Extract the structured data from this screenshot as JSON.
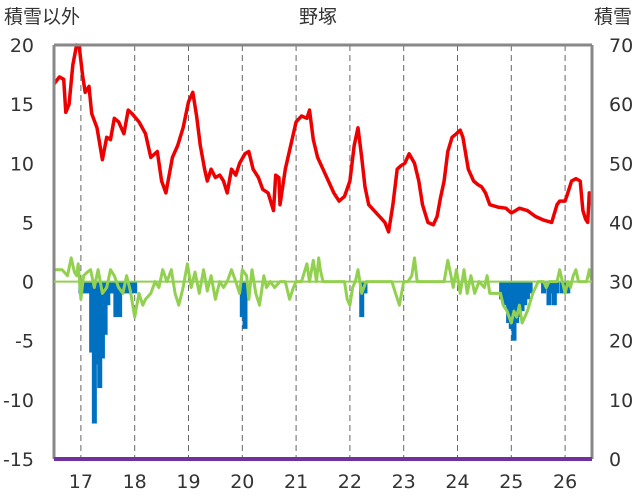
{
  "chart_data": {
    "type": "line",
    "title": "野塚",
    "xlabel": "",
    "y_left_label": "積雪以外",
    "y_right_label": "積雪",
    "x_categories": [
      "17",
      "18",
      "19",
      "20",
      "21",
      "22",
      "23",
      "24",
      "25",
      "26"
    ],
    "xlim": [
      16.5,
      26.5
    ],
    "y_left_ticks": [
      "20",
      "15",
      "10",
      "5",
      "0",
      "-5",
      "-10",
      "-15"
    ],
    "y_left_range": [
      -15,
      20
    ],
    "y_right_ticks": [
      "70",
      "60",
      "50",
      "40",
      "30",
      "20",
      "10",
      "0"
    ],
    "y_right_range": [
      0,
      70
    ],
    "grid": "dashed vertical at year ticks",
    "colors": {
      "red_series": "#ee0000",
      "green_series": "#92d050",
      "blue_bars": "#0070c0",
      "axis_base": "#7030a0",
      "frame": "#888888",
      "grid": "#666666"
    },
    "series": [
      {
        "axis": "left",
        "color": "#ee0000",
        "points": [
          [
            16.5,
            16.7
          ],
          [
            16.6,
            17.3
          ],
          [
            16.68,
            17.1
          ],
          [
            16.72,
            14.3
          ],
          [
            16.78,
            15.0
          ],
          [
            16.85,
            18.3
          ],
          [
            16.92,
            20.0
          ],
          [
            16.97,
            19.8
          ],
          [
            17.03,
            17.5
          ],
          [
            17.08,
            16.0
          ],
          [
            17.15,
            16.5
          ],
          [
            17.2,
            14.2
          ],
          [
            17.3,
            13.0
          ],
          [
            17.4,
            10.3
          ],
          [
            17.48,
            12.2
          ],
          [
            17.55,
            12.0
          ],
          [
            17.62,
            13.8
          ],
          [
            17.7,
            13.5
          ],
          [
            17.8,
            12.5
          ],
          [
            17.88,
            14.5
          ],
          [
            17.95,
            14.2
          ],
          [
            18.08,
            13.5
          ],
          [
            18.2,
            12.5
          ],
          [
            18.3,
            10.5
          ],
          [
            18.42,
            11.0
          ],
          [
            18.5,
            8.5
          ],
          [
            18.58,
            7.5
          ],
          [
            18.7,
            10.5
          ],
          [
            18.8,
            11.5
          ],
          [
            18.9,
            13.0
          ],
          [
            19.0,
            15.2
          ],
          [
            19.08,
            16.0
          ],
          [
            19.15,
            14.0
          ],
          [
            19.22,
            11.5
          ],
          [
            19.3,
            9.5
          ],
          [
            19.35,
            8.5
          ],
          [
            19.42,
            9.5
          ],
          [
            19.5,
            8.8
          ],
          [
            19.58,
            9.0
          ],
          [
            19.65,
            8.5
          ],
          [
            19.72,
            7.5
          ],
          [
            19.8,
            9.5
          ],
          [
            19.88,
            9.0
          ],
          [
            19.95,
            10.0
          ],
          [
            20.05,
            10.8
          ],
          [
            20.12,
            11.0
          ],
          [
            20.2,
            9.5
          ],
          [
            20.3,
            8.8
          ],
          [
            20.38,
            7.8
          ],
          [
            20.48,
            7.5
          ],
          [
            20.58,
            6.0
          ],
          [
            20.62,
            9.0
          ],
          [
            20.68,
            8.8
          ],
          [
            20.7,
            6.5
          ],
          [
            20.8,
            9.5
          ],
          [
            20.9,
            11.5
          ],
          [
            21.0,
            13.5
          ],
          [
            21.1,
            14.0
          ],
          [
            21.2,
            13.8
          ],
          [
            21.25,
            14.5
          ],
          [
            21.32,
            12.0
          ],
          [
            21.4,
            10.5
          ],
          [
            21.5,
            9.5
          ],
          [
            21.6,
            8.5
          ],
          [
            21.7,
            7.5
          ],
          [
            21.8,
            6.8
          ],
          [
            21.9,
            7.2
          ],
          [
            22.0,
            8.5
          ],
          [
            22.08,
            11.5
          ],
          [
            22.15,
            13.0
          ],
          [
            22.22,
            10.5
          ],
          [
            22.28,
            8.0
          ],
          [
            22.35,
            6.5
          ],
          [
            22.45,
            6.0
          ],
          [
            22.55,
            5.5
          ],
          [
            22.65,
            5.0
          ],
          [
            22.72,
            4.2
          ],
          [
            22.8,
            6.5
          ],
          [
            22.88,
            9.5
          ],
          [
            22.95,
            9.8
          ],
          [
            23.02,
            10.0
          ],
          [
            23.1,
            10.8
          ],
          [
            23.2,
            10.0
          ],
          [
            23.28,
            8.5
          ],
          [
            23.35,
            6.5
          ],
          [
            23.45,
            5.0
          ],
          [
            23.55,
            4.8
          ],
          [
            23.62,
            5.5
          ],
          [
            23.68,
            7.0
          ],
          [
            23.75,
            8.5
          ],
          [
            23.82,
            11.0
          ],
          [
            23.9,
            12.2
          ],
          [
            23.98,
            12.5
          ],
          [
            24.05,
            12.8
          ],
          [
            24.1,
            12.2
          ],
          [
            24.2,
            9.5
          ],
          [
            24.3,
            8.5
          ],
          [
            24.38,
            8.2
          ],
          [
            24.45,
            8.0
          ],
          [
            24.52,
            7.5
          ],
          [
            24.6,
            6.5
          ],
          [
            24.75,
            6.3
          ],
          [
            24.9,
            6.2
          ],
          [
            25.0,
            5.8
          ],
          [
            25.08,
            6.0
          ],
          [
            25.15,
            6.2
          ],
          [
            25.3,
            6.0
          ],
          [
            25.45,
            5.5
          ],
          [
            25.6,
            5.2
          ],
          [
            25.75,
            5.0
          ],
          [
            25.85,
            6.5
          ],
          [
            25.9,
            6.8
          ],
          [
            26.0,
            6.8
          ],
          [
            26.05,
            7.5
          ],
          [
            26.12,
            8.5
          ],
          [
            26.2,
            8.7
          ],
          [
            26.28,
            8.5
          ],
          [
            26.33,
            6.0
          ],
          [
            26.38,
            5.3
          ],
          [
            26.42,
            5.0
          ],
          [
            26.45,
            7.5
          ],
          [
            26.48,
            6.5
          ]
        ]
      },
      {
        "axis": "left",
        "color": "#92d050",
        "points": [
          [
            16.5,
            1.0
          ],
          [
            16.65,
            1.0
          ],
          [
            16.75,
            0.5
          ],
          [
            16.82,
            2.0
          ],
          [
            16.88,
            0.8
          ],
          [
            16.92,
            0.5
          ],
          [
            16.95,
            1.5
          ],
          [
            17.0,
            -1.5
          ],
          [
            17.05,
            0.5
          ],
          [
            17.12,
            0.8
          ],
          [
            17.18,
            1.0
          ],
          [
            17.25,
            -0.5
          ],
          [
            17.32,
            1.0
          ],
          [
            17.4,
            -1.0
          ],
          [
            17.48,
            -0.5
          ],
          [
            17.55,
            1.0
          ],
          [
            17.62,
            0.5
          ],
          [
            17.7,
            -0.5
          ],
          [
            17.78,
            -1.0
          ],
          [
            17.85,
            0.5
          ],
          [
            17.92,
            -0.8
          ],
          [
            18.0,
            -3.0
          ],
          [
            18.08,
            -1.0
          ],
          [
            18.15,
            -2.0
          ],
          [
            18.2,
            -1.5
          ],
          [
            18.3,
            -1.0
          ],
          [
            18.38,
            0.0
          ],
          [
            18.45,
            -0.5
          ],
          [
            18.52,
            1.0
          ],
          [
            18.6,
            0.0
          ],
          [
            18.68,
            1.0
          ],
          [
            18.75,
            -1.0
          ],
          [
            18.82,
            -2.0
          ],
          [
            18.9,
            -0.5
          ],
          [
            18.98,
            1.5
          ],
          [
            19.05,
            -0.5
          ],
          [
            19.12,
            0.8
          ],
          [
            19.2,
            -1.0
          ],
          [
            19.28,
            1.0
          ],
          [
            19.35,
            -0.8
          ],
          [
            19.42,
            0.5
          ],
          [
            19.5,
            -1.5
          ],
          [
            19.58,
            0.0
          ],
          [
            19.65,
            -0.5
          ],
          [
            19.72,
            0.0
          ],
          [
            19.8,
            1.0
          ],
          [
            19.88,
            0.0
          ],
          [
            19.95,
            -1.0
          ],
          [
            20.0,
            1.0
          ],
          [
            20.08,
            0.5
          ],
          [
            20.12,
            -1.5
          ],
          [
            20.18,
            1.0
          ],
          [
            20.25,
            -1.0
          ],
          [
            20.32,
            -2.0
          ],
          [
            20.4,
            0.5
          ],
          [
            20.45,
            -0.5
          ],
          [
            20.52,
            0.0
          ],
          [
            20.6,
            -0.5
          ],
          [
            20.7,
            0.0
          ],
          [
            20.8,
            0.0
          ],
          [
            20.88,
            -1.5
          ],
          [
            20.95,
            -0.5
          ],
          [
            21.0,
            0.0
          ],
          [
            21.1,
            0.0
          ],
          [
            21.2,
            1.5
          ],
          [
            21.25,
            0.0
          ],
          [
            21.32,
            1.8
          ],
          [
            21.38,
            0.0
          ],
          [
            21.42,
            2.0
          ],
          [
            21.45,
            1.0
          ],
          [
            21.5,
            0.0
          ],
          [
            21.6,
            0.0
          ],
          [
            21.7,
            0.0
          ],
          [
            21.8,
            0.0
          ],
          [
            21.9,
            0.0
          ],
          [
            21.95,
            -1.5
          ],
          [
            22.0,
            -2.0
          ],
          [
            22.05,
            -0.5
          ],
          [
            22.1,
            0.0
          ],
          [
            22.15,
            1.0
          ],
          [
            22.22,
            -1.0
          ],
          [
            22.3,
            0.0
          ],
          [
            22.4,
            0.0
          ],
          [
            22.5,
            0.0
          ],
          [
            22.6,
            0.0
          ],
          [
            22.7,
            0.0
          ],
          [
            22.78,
            0.0
          ],
          [
            22.85,
            -1.0
          ],
          [
            22.92,
            -2.0
          ],
          [
            23.0,
            0.0
          ],
          [
            23.08,
            0.0
          ],
          [
            23.15,
            0.5
          ],
          [
            23.2,
            2.0
          ],
          [
            23.25,
            0.0
          ],
          [
            23.3,
            0.0
          ],
          [
            23.4,
            0.0
          ],
          [
            23.5,
            0.0
          ],
          [
            23.6,
            0.0
          ],
          [
            23.7,
            0.0
          ],
          [
            23.75,
            0.0
          ],
          [
            23.82,
            1.8
          ],
          [
            23.88,
            0.5
          ],
          [
            23.92,
            -0.5
          ],
          [
            23.98,
            1.0
          ],
          [
            24.05,
            -1.0
          ],
          [
            24.12,
            1.0
          ],
          [
            24.18,
            -1.0
          ],
          [
            24.25,
            0.5
          ],
          [
            24.32,
            -1.0
          ],
          [
            24.4,
            0.0
          ],
          [
            24.5,
            -0.5
          ],
          [
            24.55,
            0.5
          ],
          [
            24.6,
            -1.0
          ],
          [
            24.7,
            -1.0
          ],
          [
            24.8,
            -1.0
          ],
          [
            24.85,
            -2.0
          ],
          [
            24.92,
            -2.5
          ],
          [
            25.0,
            -3.5
          ],
          [
            25.05,
            -2.5
          ],
          [
            25.1,
            -3.0
          ],
          [
            25.15,
            -2.0
          ],
          [
            25.2,
            -3.5
          ],
          [
            25.3,
            -2.5
          ],
          [
            25.4,
            -1.0
          ],
          [
            25.5,
            0.0
          ],
          [
            25.6,
            0.0
          ],
          [
            25.65,
            -0.5
          ],
          [
            25.7,
            0.0
          ],
          [
            25.8,
            0.0
          ],
          [
            25.85,
            0.0
          ],
          [
            25.9,
            1.0
          ],
          [
            26.0,
            -1.0
          ],
          [
            26.05,
            0.0
          ],
          [
            26.1,
            -0.5
          ],
          [
            26.15,
            0.5
          ],
          [
            26.2,
            1.0
          ],
          [
            26.25,
            0.0
          ],
          [
            26.3,
            0.0
          ],
          [
            26.4,
            0.0
          ],
          [
            26.45,
            1.0
          ],
          [
            26.5,
            0.0
          ]
        ]
      },
      {
        "axis": "left",
        "type": "bar",
        "color": "#0070c0",
        "bars": [
          [
            17.0,
            -1.0
          ],
          [
            17.08,
            -1.0
          ],
          [
            17.15,
            -1.0
          ],
          [
            17.2,
            -6.0
          ],
          [
            17.25,
            -12.0
          ],
          [
            17.3,
            -7.0
          ],
          [
            17.35,
            -9.0
          ],
          [
            17.4,
            -6.5
          ],
          [
            17.45,
            -4.5
          ],
          [
            17.5,
            -2.0
          ],
          [
            17.55,
            -1.0
          ],
          [
            17.6,
            -1.0
          ],
          [
            17.65,
            -3.0
          ],
          [
            17.72,
            -3.0
          ],
          [
            17.78,
            -1.0
          ],
          [
            17.85,
            -1.0
          ],
          [
            17.92,
            -1.0
          ],
          [
            18.0,
            -1.0
          ],
          [
            20.0,
            -3.0
          ],
          [
            20.05,
            -4.0
          ],
          [
            22.22,
            -3.0
          ],
          [
            22.28,
            -1.0
          ],
          [
            24.82,
            -1.5
          ],
          [
            24.9,
            -2.0
          ],
          [
            24.95,
            -3.5
          ],
          [
            25.0,
            -4.0
          ],
          [
            25.05,
            -5.0
          ],
          [
            25.1,
            -3.5
          ],
          [
            25.15,
            -3.0
          ],
          [
            25.2,
            -2.5
          ],
          [
            25.25,
            -2.0
          ],
          [
            25.3,
            -1.5
          ],
          [
            25.35,
            -1.0
          ],
          [
            25.6,
            -1.0
          ],
          [
            25.7,
            -2.0
          ],
          [
            25.75,
            -1.0
          ],
          [
            25.8,
            -2.0
          ],
          [
            25.85,
            -1.0
          ],
          [
            25.95,
            -1.0
          ],
          [
            26.0,
            -1.0
          ],
          [
            26.05,
            -1.0
          ]
        ]
      }
    ]
  }
}
